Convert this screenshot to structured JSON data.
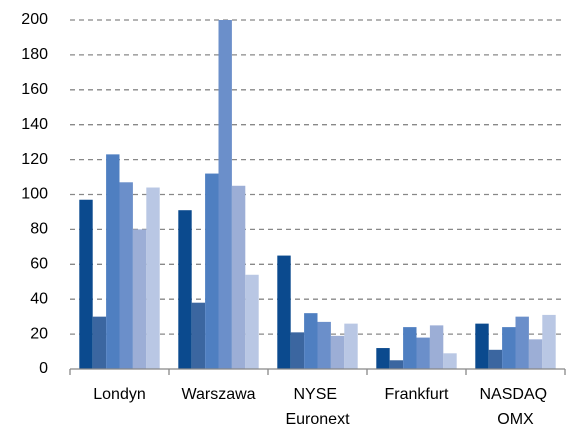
{
  "chart_data": {
    "type": "bar",
    "categories": [
      "Londyn",
      "Warszawa",
      "NYSE Euronext",
      "Frankfurt",
      "NASDAQ OMX"
    ],
    "series": [
      {
        "color": "#0b4a8e",
        "values": [
          97,
          91,
          65,
          12,
          26
        ]
      },
      {
        "color": "#3b66a0",
        "values": [
          30,
          38,
          21,
          5,
          11
        ]
      },
      {
        "color": "#4f7fc1",
        "values": [
          123,
          112,
          32,
          24,
          24
        ]
      },
      {
        "color": "#6b8fca",
        "values": [
          107,
          200,
          27,
          18,
          30
        ]
      },
      {
        "color": "#9caed6",
        "values": [
          80,
          105,
          19,
          25,
          17
        ]
      },
      {
        "color": "#b9c7e4",
        "values": [
          104,
          54,
          26,
          9,
          31
        ]
      }
    ],
    "ylim": [
      0,
      200
    ],
    "yticks": [
      0,
      20,
      40,
      60,
      80,
      100,
      120,
      140,
      160,
      180,
      200
    ],
    "grid": true
  }
}
